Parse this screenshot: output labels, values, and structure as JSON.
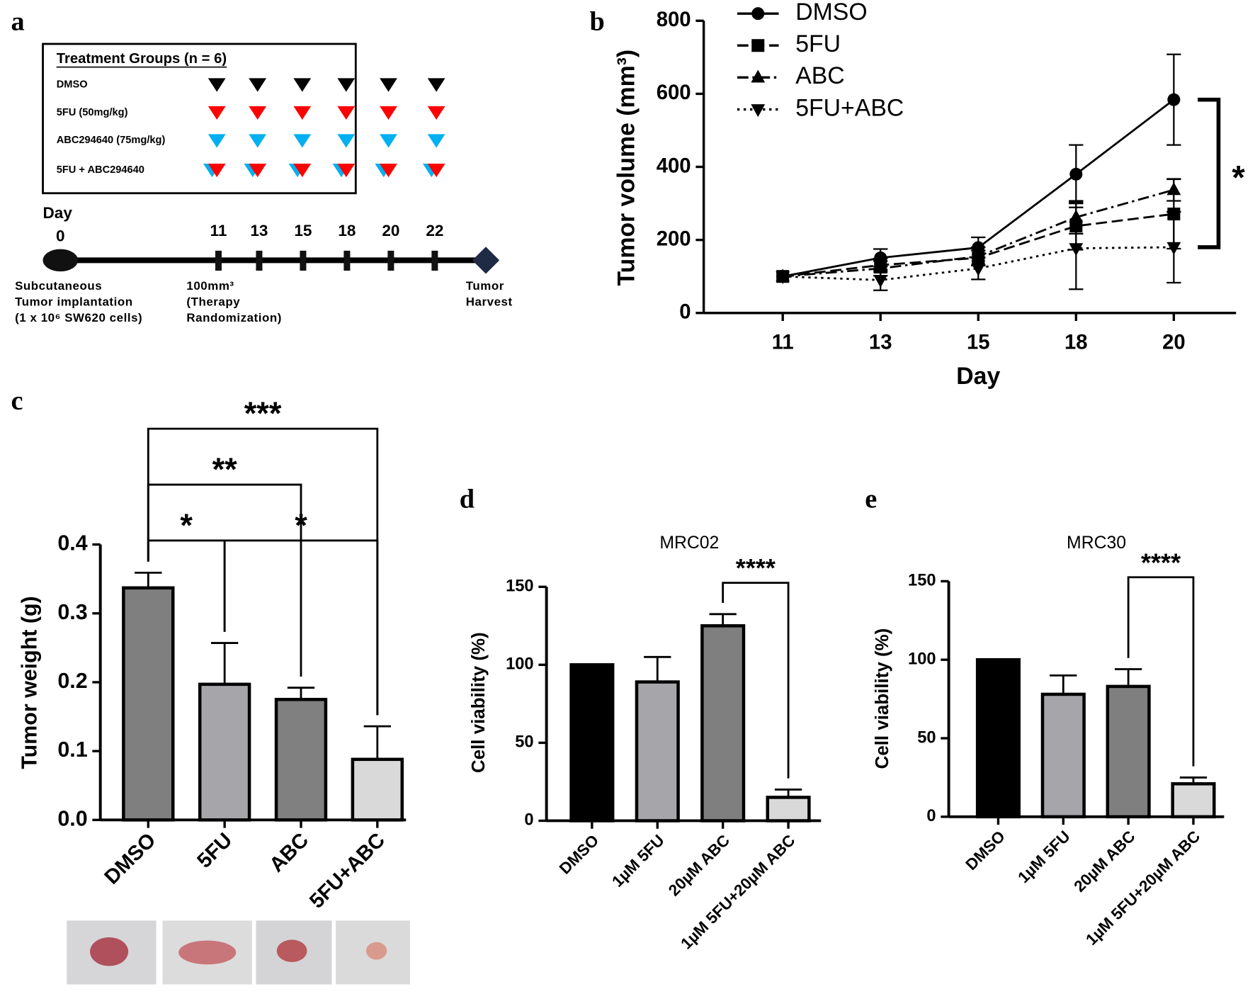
{
  "diagram": {
    "panel": "a",
    "title": "Treatment Groups (n = 6)",
    "groups": [
      {
        "name": "DMSO",
        "colors": [
          "#000000"
        ]
      },
      {
        "name": "5FU (50mg/kg)",
        "colors": [
          "#ff0000"
        ]
      },
      {
        "name": "ABC294640 (75mg/kg)",
        "colors": [
          "#00b0f0"
        ]
      },
      {
        "name": "5FU + ABC294640",
        "colors": [
          "#00b0f0",
          "#ff0000"
        ]
      }
    ],
    "timeline_label": "Day",
    "days": [
      "0",
      "11",
      "13",
      "15",
      "18",
      "20",
      "22"
    ],
    "notes": [
      [
        "Subcutaneous",
        "Tumor implantation",
        "(1 x 10⁶ SW620 cells)"
      ],
      [
        "100mm³",
        "(Therapy",
        "Randomization)"
      ],
      [
        "Tumor",
        "Harvest"
      ]
    ]
  },
  "chart_data": [
    {
      "type": "line",
      "panel": "b",
      "y_label": "Tumor volume (mm³)",
      "x_label": "Day",
      "categories": [
        "11",
        "13",
        "15",
        "18",
        "20"
      ],
      "ylim": [
        0,
        800
      ],
      "yticks": [
        0,
        200,
        400,
        600,
        800
      ],
      "series": [
        {
          "name": "DMSO",
          "color": "#000000",
          "dash": "solid",
          "marker": "circle",
          "values": [
            100,
            151,
            179,
            380,
            584
          ],
          "errors": [
            0,
            24,
            28,
            80,
            124
          ]
        },
        {
          "name": "5FU",
          "color": "#000000",
          "dash": "dashed",
          "marker": "square",
          "values": [
            100,
            131,
            151,
            238,
            271
          ],
          "errors": [
            0,
            18,
            20,
            65,
            95
          ]
        },
        {
          "name": "ABC",
          "color": "#000000",
          "dash": "dashdot",
          "marker": "triangle",
          "values": [
            100,
            122,
            155,
            262,
            337
          ],
          "errors": [
            0,
            20,
            25,
            45,
            30
          ]
        },
        {
          "name": "5FU+ABC",
          "color": "#000000",
          "dash": "dotted",
          "marker": "triangle-down",
          "values": [
            100,
            90,
            122,
            177,
            180
          ],
          "errors": [
            0,
            28,
            30,
            112,
            97
          ]
        }
      ],
      "annotation": "*"
    },
    {
      "type": "bar",
      "panel": "c",
      "y_label": "Tumor weight (g)",
      "categories": [
        "DMSO",
        "5FU",
        "ABC",
        "5FU+ABC"
      ],
      "values": [
        0.337,
        0.197,
        0.175,
        0.088
      ],
      "errors": [
        0.022,
        0.06,
        0.017,
        0.048
      ],
      "colors": [
        "#7f7f7f",
        "#a5a5aa",
        "#808080",
        "#d9d9d9"
      ],
      "ylim": [
        0,
        0.4
      ],
      "yticks": [
        {
          "value": 0,
          "label": "0.0"
        },
        0.1,
        0.2,
        0.3,
        0.4
      ],
      "comparisons": [
        {
          "groups": [
            "DMSO",
            "5FU"
          ],
          "label": "*"
        },
        {
          "groups": [
            "5FU",
            "5FU+ABC"
          ],
          "label": "*"
        },
        {
          "groups": [
            "DMSO",
            "ABC"
          ],
          "label": "**"
        },
        {
          "groups": [
            "DMSO",
            "5FU+ABC"
          ],
          "label": "***"
        }
      ]
    },
    {
      "type": "bar",
      "panel": "d",
      "title": "MRC02",
      "y_label": "Cell viability (%)",
      "categories": [
        "DMSO",
        "1µM 5FU",
        "20µM ABC",
        "1µM 5FU+20µM ABC"
      ],
      "values": [
        100,
        89,
        125,
        15
      ],
      "errors": [
        0,
        16,
        7.5,
        5
      ],
      "colors": [
        "#000000",
        "#a5a5aa",
        "#7f7f7f",
        "#d9d9d9"
      ],
      "ylim": [
        0,
        150
      ],
      "yticks": [
        0,
        50,
        100,
        150
      ],
      "comparisons": [
        {
          "groups": [
            "20µM ABC",
            "1µM 5FU+20µM ABC"
          ],
          "label": "****"
        }
      ]
    },
    {
      "type": "bar",
      "panel": "e",
      "title": "MRC30",
      "y_label": "Cell viability (%)",
      "categories": [
        "DMSO",
        "1µM 5FU",
        "20µM ABC",
        "1µM 5FU+20µM ABC"
      ],
      "values": [
        100,
        78,
        83,
        21
      ],
      "errors": [
        0,
        12,
        11,
        4
      ],
      "colors": [
        "#000000",
        "#a5a5aa",
        "#7f7f7f",
        "#d9d9d9"
      ],
      "ylim": [
        0,
        150
      ],
      "yticks": [
        0,
        50,
        100,
        150
      ],
      "comparisons": [
        {
          "groups": [
            "20µM ABC",
            "1µM 5FU+20µM ABC"
          ],
          "label": "****"
        }
      ]
    }
  ]
}
